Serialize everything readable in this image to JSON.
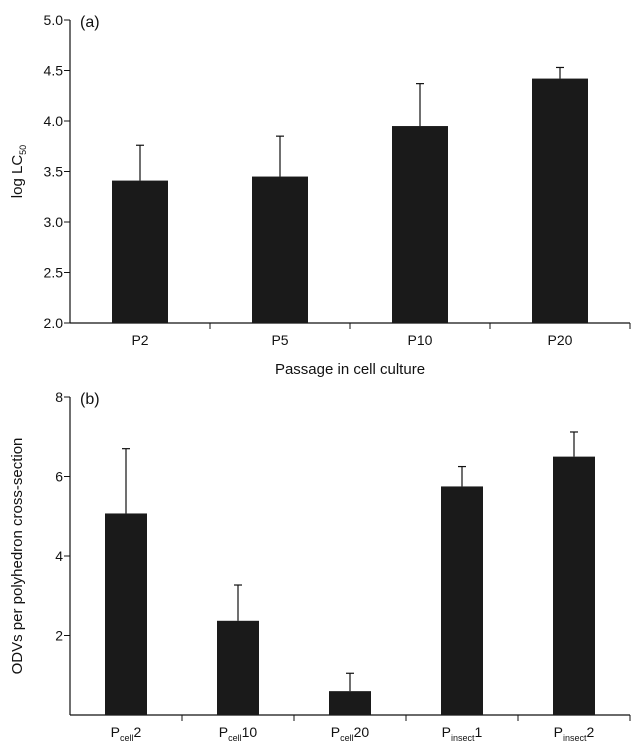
{
  "chart_data": [
    {
      "type": "bar",
      "panel_label": "(a)",
      "categories": [
        "P2",
        "P5",
        "P10",
        "P20"
      ],
      "values": [
        3.41,
        3.45,
        3.95,
        4.42
      ],
      "error_plus": [
        0.35,
        0.4,
        0.42,
        0.11
      ],
      "ylabel": "log LC",
      "ylabel_sub": "50",
      "xlabel": "Passage in cell culture",
      "ylim": [
        2.0,
        5.0
      ],
      "yticks": [
        "2.0",
        "2.5",
        "3.0",
        "3.5",
        "4.0",
        "4.5",
        "5.0"
      ],
      "bar_color": "#1a1a1a",
      "grid": false
    },
    {
      "type": "bar",
      "panel_label": "(b)",
      "categories": [
        {
          "base": "P",
          "sub": "cell",
          "suffix": "2"
        },
        {
          "base": "P",
          "sub": "cell",
          "suffix": "10"
        },
        {
          "base": "P",
          "sub": "cell",
          "suffix": "20"
        },
        {
          "base": "P",
          "sub": "insect",
          "suffix": "1"
        },
        {
          "base": "P",
          "sub": "insect",
          "suffix": "2"
        }
      ],
      "values": [
        5.07,
        2.37,
        0.6,
        5.75,
        6.5
      ],
      "error_plus": [
        1.63,
        0.9,
        0.45,
        0.5,
        0.62
      ],
      "ylabel": "ODVs per polyhedron cross-section",
      "xlabel": "",
      "ylim": [
        0,
        8
      ],
      "yticks": [
        "2",
        "4",
        "6",
        "8"
      ],
      "bar_color": "#1a1a1a",
      "grid": false
    }
  ]
}
